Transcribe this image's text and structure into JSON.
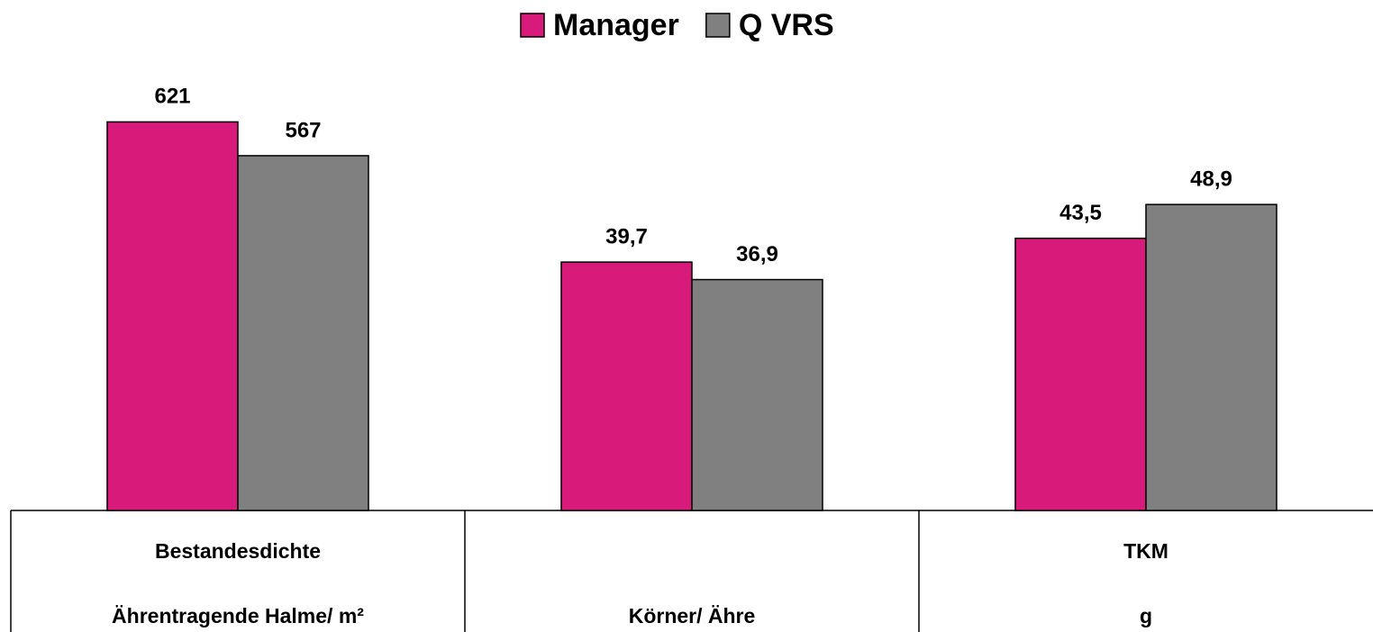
{
  "chart_data": {
    "type": "bar",
    "categories": [
      [
        "Bestandesdichte",
        "Ährentragende Halme/ m²"
      ],
      [
        "Körner/ Ähre"
      ],
      [
        "TKM",
        "g"
      ]
    ],
    "category_ylims": [
      [
        0,
        800
      ],
      [
        0,
        80
      ],
      [
        0,
        80
      ]
    ],
    "series": [
      {
        "name": "Manager",
        "color": "#d81b7b",
        "values": [
          621,
          39.7,
          43.5
        ],
        "value_labels": [
          "621",
          "39,7",
          "43,5"
        ]
      },
      {
        "name": "Q VRS",
        "color": "#808080",
        "values": [
          567,
          36.9,
          48.9
        ],
        "value_labels": [
          "567",
          "36,9",
          "48,9"
        ]
      }
    ],
    "legend": "top"
  }
}
